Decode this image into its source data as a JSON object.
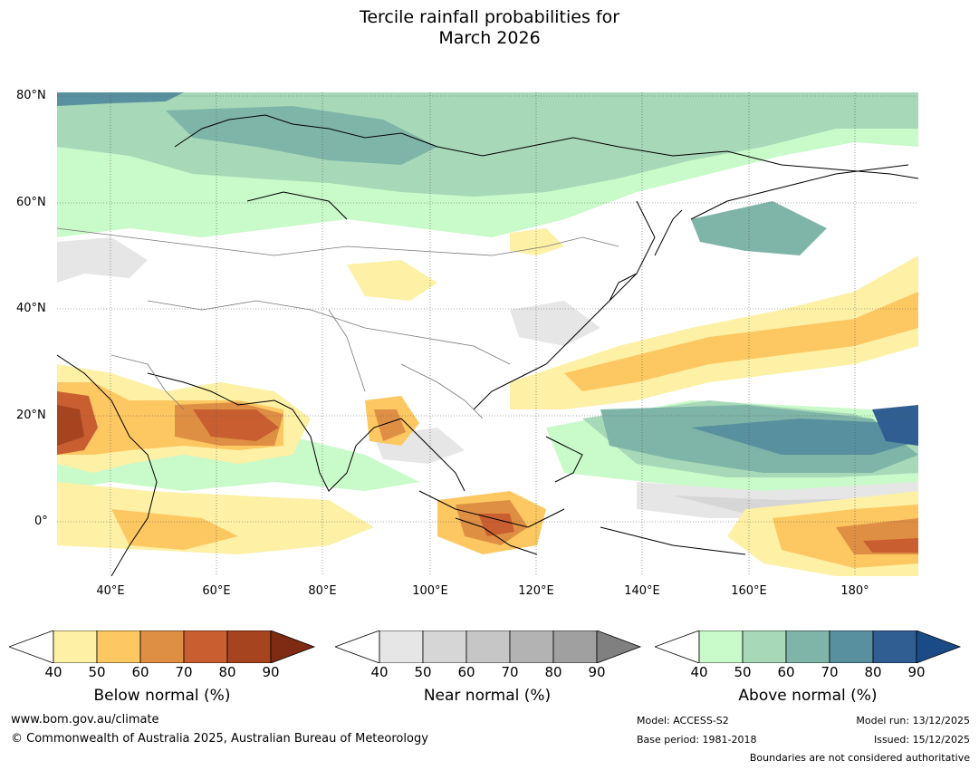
{
  "title": {
    "line1": "Tercile rainfall probabilities for",
    "line2": "March 2026"
  },
  "axes": {
    "lat_labels": [
      "80°N",
      "60°N",
      "40°N",
      "20°N",
      "0°"
    ],
    "lon_labels": [
      "40°E",
      "60°E",
      "80°E",
      "100°E",
      "120°E",
      "140°E",
      "160°E",
      "180°"
    ]
  },
  "legend": {
    "below": {
      "label": "Below normal (%)",
      "ticks": [
        "40",
        "50",
        "60",
        "70",
        "80",
        "90"
      ],
      "colors": [
        "#fef0a4",
        "#fdc762",
        "#df8f44",
        "#c95f30",
        "#a6441f",
        "#7f2a12"
      ]
    },
    "near": {
      "label": "Near normal (%)",
      "ticks": [
        "40",
        "50",
        "60",
        "70",
        "80",
        "90"
      ],
      "colors": [
        "#e6e6e6",
        "#d6d6d6",
        "#c6c6c6",
        "#b3b3b3",
        "#a0a0a0",
        "#808080"
      ]
    },
    "above": {
      "label": "Above normal (%)",
      "ticks": [
        "40",
        "50",
        "60",
        "70",
        "80",
        "90"
      ],
      "colors": [
        "#c9fac9",
        "#a7d8b8",
        "#7fb4a8",
        "#58909f",
        "#305e92",
        "#1b4b86"
      ]
    }
  },
  "footer": {
    "website": "www.bom.gov.au/climate",
    "copyright": "© Commonwealth of Australia 2025, Australian Bureau of Meteorology",
    "model": "Model: ACCESS-S2",
    "base_period": "Base period: 1981-2018",
    "model_run": "Model run: 13/12/2025",
    "issued": "Issued: 15/12/2025",
    "disclaimer": "Boundaries are not considered authoritative"
  }
}
